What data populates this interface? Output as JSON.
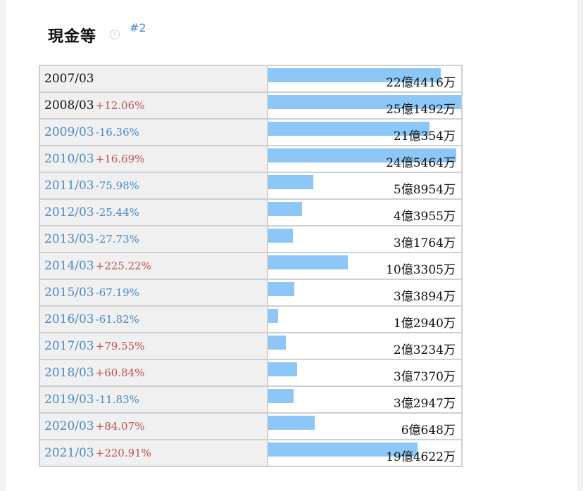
{
  "header": {
    "title": "現金等",
    "help_glyph": "?",
    "rank": "#2"
  },
  "colors": {
    "bar": "#8cc7f7",
    "up": "#c0504d",
    "down": "#4a8ac8",
    "link": "#4a8ac8"
  },
  "chart_data": {
    "type": "bar",
    "orientation": "horizontal",
    "categories": [
      "2007/03",
      "2008/03",
      "2009/03",
      "2010/03",
      "2011/03",
      "2012/03",
      "2013/03",
      "2014/03",
      "2015/03",
      "2016/03",
      "2017/03",
      "2018/03",
      "2019/03",
      "2020/03",
      "2021/03"
    ],
    "changes": [
      "",
      "+12.06%",
      "-16.36%",
      "+16.69%",
      "-75.98%",
      "-25.44%",
      "-27.73%",
      "+225.22%",
      "-67.19%",
      "-61.82%",
      "+79.55%",
      "+60.84%",
      "-11.83%",
      "+84.07%",
      "+220.91%"
    ],
    "value_labels": [
      "22億4416万",
      "25億1492万",
      "21億354万",
      "24億5464万",
      "5億8954万",
      "4億3955万",
      "3億1764万",
      "10億3305万",
      "3億3894万",
      "1億2940万",
      "2億3234万",
      "3億7370万",
      "3億2947万",
      "6億648万",
      "19億4622万"
    ],
    "values": [
      2244160000,
      2514920000,
      2103540000,
      2454640000,
      589540000,
      439550000,
      317640000,
      1033050000,
      338940000,
      129400000,
      232340000,
      373700000,
      329470000,
      606480000,
      1946220000
    ],
    "max": 2514920000
  }
}
